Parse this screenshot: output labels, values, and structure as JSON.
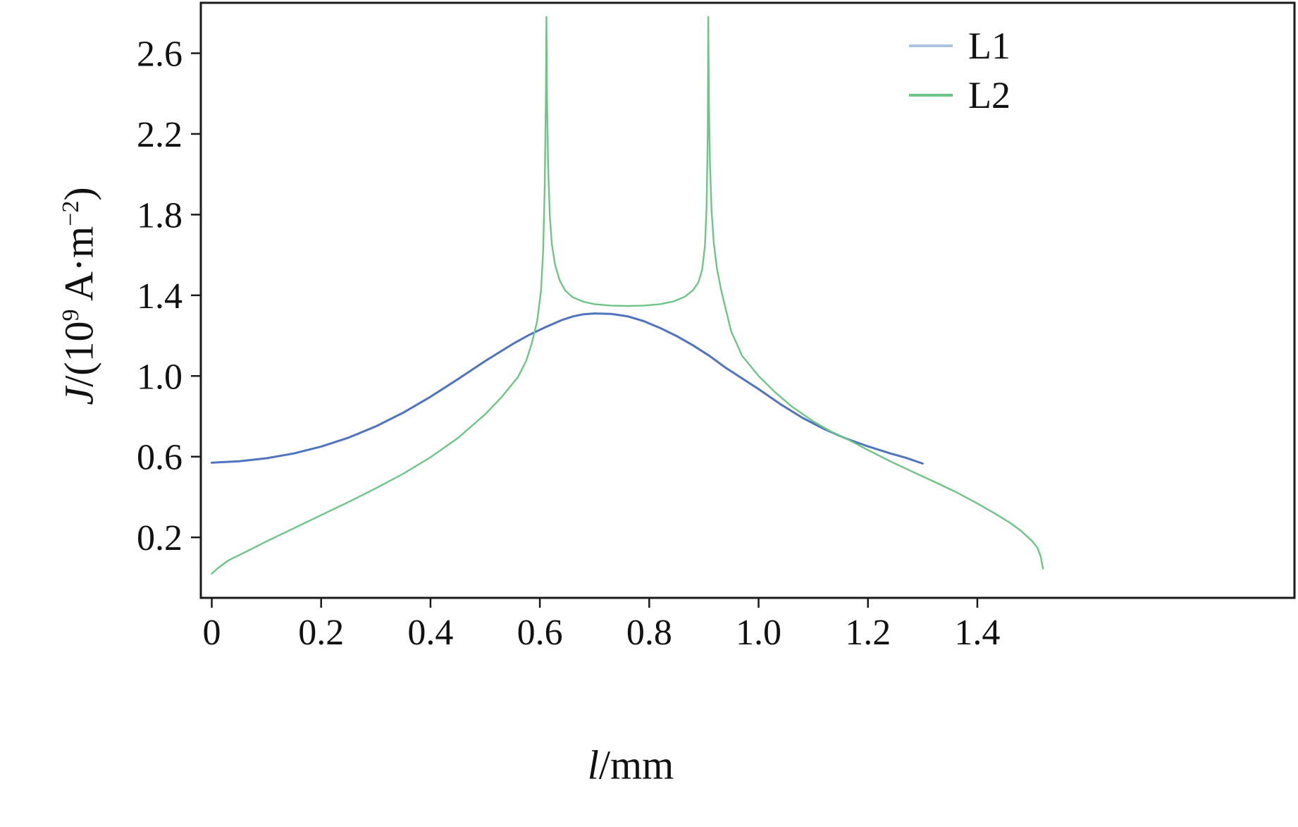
{
  "legend": {
    "items": [
      {
        "label": "L1",
        "color": "#aec3e2"
      },
      {
        "label": "L2",
        "color": "#6fc487"
      }
    ]
  },
  "axes": {
    "y_label": {
      "j": "J",
      "mid1": "/(10",
      "sup1": "9",
      "mid2": " A·m",
      "sup2": "−2",
      "close": ")"
    },
    "x_label": {
      "l": "l",
      "unit": "/mm"
    }
  },
  "chart_data": {
    "type": "line",
    "title": "",
    "xlabel": "l/mm",
    "ylabel": "J/(10^9 A·m^-2)",
    "xlim": [
      -0.02,
      1.98
    ],
    "ylim": [
      -0.1,
      2.85
    ],
    "grid": false,
    "legend_position": "upper right",
    "x_ticks": [
      {
        "value": 0.0,
        "label": "0"
      },
      {
        "value": 0.2,
        "label": "0.2"
      },
      {
        "value": 0.4,
        "label": "0.4"
      },
      {
        "value": 0.6,
        "label": "0.6"
      },
      {
        "value": 0.8,
        "label": "0.8"
      },
      {
        "value": 1.0,
        "label": "1.0"
      },
      {
        "value": 1.2,
        "label": "1.2"
      },
      {
        "value": 1.4,
        "label": "1.4"
      }
    ],
    "y_ticks": [
      {
        "value": 0.2,
        "label": "0.2"
      },
      {
        "value": 0.6,
        "label": "0.6"
      },
      {
        "value": 1.0,
        "label": "1.0"
      },
      {
        "value": 1.4,
        "label": "1.4"
      },
      {
        "value": 1.8,
        "label": "1.8"
      },
      {
        "value": 2.2,
        "label": "2.2"
      },
      {
        "value": 2.6,
        "label": "2.6"
      }
    ],
    "series": [
      {
        "name": "L1",
        "color": "#4f73bd",
        "width": 3,
        "points": [
          [
            0.0,
            0.57
          ],
          [
            0.05,
            0.577
          ],
          [
            0.1,
            0.592
          ],
          [
            0.15,
            0.616
          ],
          [
            0.2,
            0.65
          ],
          [
            0.25,
            0.694
          ],
          [
            0.3,
            0.75
          ],
          [
            0.35,
            0.818
          ],
          [
            0.4,
            0.897
          ],
          [
            0.45,
            0.984
          ],
          [
            0.5,
            1.074
          ],
          [
            0.55,
            1.158
          ],
          [
            0.58,
            1.203
          ],
          [
            0.61,
            1.242
          ],
          [
            0.64,
            1.277
          ],
          [
            0.66,
            1.295
          ],
          [
            0.68,
            1.306
          ],
          [
            0.7,
            1.31
          ],
          [
            0.73,
            1.308
          ],
          [
            0.76,
            1.296
          ],
          [
            0.79,
            1.272
          ],
          [
            0.82,
            1.238
          ],
          [
            0.85,
            1.198
          ],
          [
            0.88,
            1.152
          ],
          [
            0.91,
            1.1
          ],
          [
            0.94,
            1.04
          ],
          [
            0.97,
            0.988
          ],
          [
            1.0,
            0.935
          ],
          [
            1.04,
            0.86
          ],
          [
            1.08,
            0.793
          ],
          [
            1.12,
            0.737
          ],
          [
            1.16,
            0.69
          ],
          [
            1.2,
            0.651
          ],
          [
            1.24,
            0.617
          ],
          [
            1.27,
            0.594
          ],
          [
            1.3,
            0.566
          ]
        ]
      },
      {
        "name": "L2",
        "color": "#6fc487",
        "width": 2.4,
        "points": [
          [
            0.0,
            0.02
          ],
          [
            0.01,
            0.045
          ],
          [
            0.03,
            0.085
          ],
          [
            0.06,
            0.125
          ],
          [
            0.1,
            0.18
          ],
          [
            0.15,
            0.245
          ],
          [
            0.2,
            0.31
          ],
          [
            0.25,
            0.375
          ],
          [
            0.3,
            0.443
          ],
          [
            0.35,
            0.515
          ],
          [
            0.4,
            0.597
          ],
          [
            0.45,
            0.692
          ],
          [
            0.5,
            0.81
          ],
          [
            0.53,
            0.895
          ],
          [
            0.56,
            0.995
          ],
          [
            0.575,
            1.075
          ],
          [
            0.585,
            1.16
          ],
          [
            0.595,
            1.27
          ],
          [
            0.602,
            1.42
          ],
          [
            0.606,
            1.62
          ],
          [
            0.609,
            1.95
          ],
          [
            0.611,
            2.4
          ],
          [
            0.612,
            2.78
          ],
          [
            0.613,
            2.4
          ],
          [
            0.615,
            2.05
          ],
          [
            0.618,
            1.8
          ],
          [
            0.622,
            1.65
          ],
          [
            0.628,
            1.55
          ],
          [
            0.636,
            1.475
          ],
          [
            0.646,
            1.425
          ],
          [
            0.66,
            1.39
          ],
          [
            0.68,
            1.368
          ],
          [
            0.7,
            1.356
          ],
          [
            0.73,
            1.349
          ],
          [
            0.76,
            1.347
          ],
          [
            0.79,
            1.349
          ],
          [
            0.82,
            1.356
          ],
          [
            0.845,
            1.37
          ],
          [
            0.865,
            1.393
          ],
          [
            0.88,
            1.425
          ],
          [
            0.89,
            1.465
          ],
          [
            0.897,
            1.53
          ],
          [
            0.902,
            1.65
          ],
          [
            0.905,
            1.85
          ],
          [
            0.907,
            2.2
          ],
          [
            0.908,
            2.78
          ],
          [
            0.909,
            2.4
          ],
          [
            0.911,
            2.05
          ],
          [
            0.914,
            1.82
          ],
          [
            0.918,
            1.66
          ],
          [
            0.924,
            1.53
          ],
          [
            0.932,
            1.42
          ],
          [
            0.94,
            1.33
          ],
          [
            0.95,
            1.22
          ],
          [
            0.97,
            1.1
          ],
          [
            1.0,
            1.0
          ],
          [
            1.03,
            0.92
          ],
          [
            1.06,
            0.85
          ],
          [
            1.1,
            0.775
          ],
          [
            1.13,
            0.728
          ],
          [
            1.16,
            0.69
          ],
          [
            1.2,
            0.633
          ],
          [
            1.24,
            0.578
          ],
          [
            1.28,
            0.527
          ],
          [
            1.32,
            0.477
          ],
          [
            1.36,
            0.426
          ],
          [
            1.4,
            0.368
          ],
          [
            1.43,
            0.322
          ],
          [
            1.46,
            0.272
          ],
          [
            1.48,
            0.232
          ],
          [
            1.5,
            0.182
          ],
          [
            1.51,
            0.148
          ],
          [
            1.516,
            0.105
          ],
          [
            1.52,
            0.045
          ]
        ]
      }
    ]
  }
}
